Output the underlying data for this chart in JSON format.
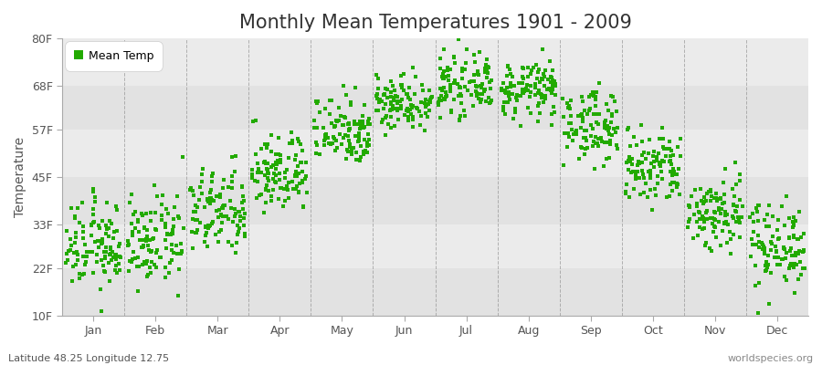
{
  "title": "Monthly Mean Temperatures 1901 - 2009",
  "ylabel": "Temperature",
  "xlabel_months": [
    "Jan",
    "Feb",
    "Mar",
    "Apr",
    "May",
    "Jun",
    "Jul",
    "Aug",
    "Sep",
    "Oct",
    "Nov",
    "Dec"
  ],
  "ytick_values": [
    10,
    22,
    33,
    45,
    57,
    68,
    80
  ],
  "ytick_labels": [
    "10F",
    "22F",
    "33F",
    "45F",
    "57F",
    "68F",
    "80F"
  ],
  "ylim": [
    10,
    80
  ],
  "xlim": [
    0,
    12
  ],
  "dot_color": "#22AA00",
  "dot_size": 5,
  "legend_label": "Mean Temp",
  "subtitle_left": "Latitude 48.25 Longitude 12.75",
  "subtitle_right": "worldspecies.org",
  "background_color": "#FFFFFF",
  "plot_bg_color": "#EBEBEB",
  "band_colors": [
    "#E2E2E2",
    "#EBEBEB"
  ],
  "dashed_line_color": "#888888",
  "title_fontsize": 15,
  "label_fontsize": 10,
  "tick_fontsize": 9,
  "num_years": 109,
  "monthly_means_f": [
    27.5,
    28.5,
    36,
    46,
    57,
    64,
    68,
    67,
    58,
    47,
    36,
    28
  ],
  "monthly_stds_f": [
    5.5,
    5.5,
    5.5,
    5,
    4.5,
    3.5,
    3.5,
    3.5,
    4.5,
    5,
    5,
    5.5
  ]
}
